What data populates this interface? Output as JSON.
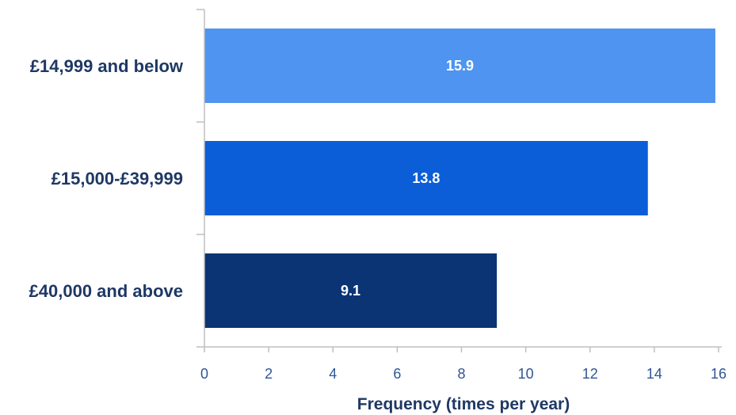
{
  "chart_data": {
    "type": "bar",
    "orientation": "horizontal",
    "categories": [
      "£14,999 and below",
      "£15,000-£39,999",
      "£40,000 and above"
    ],
    "values": [
      15.9,
      13.8,
      9.1
    ],
    "data_labels": [
      "15.9",
      "13.8",
      "9.1"
    ],
    "bar_colors": [
      "#4f94f0",
      "#0b5ed7",
      "#0b3475"
    ],
    "title": "",
    "xlabel": "Frequency (times per year)",
    "ylabel": "",
    "xlim": [
      0,
      16
    ],
    "x_ticks": [
      "0",
      "2",
      "4",
      "6",
      "8",
      "10",
      "12",
      "14",
      "16"
    ],
    "grid": false,
    "legend": "none"
  }
}
